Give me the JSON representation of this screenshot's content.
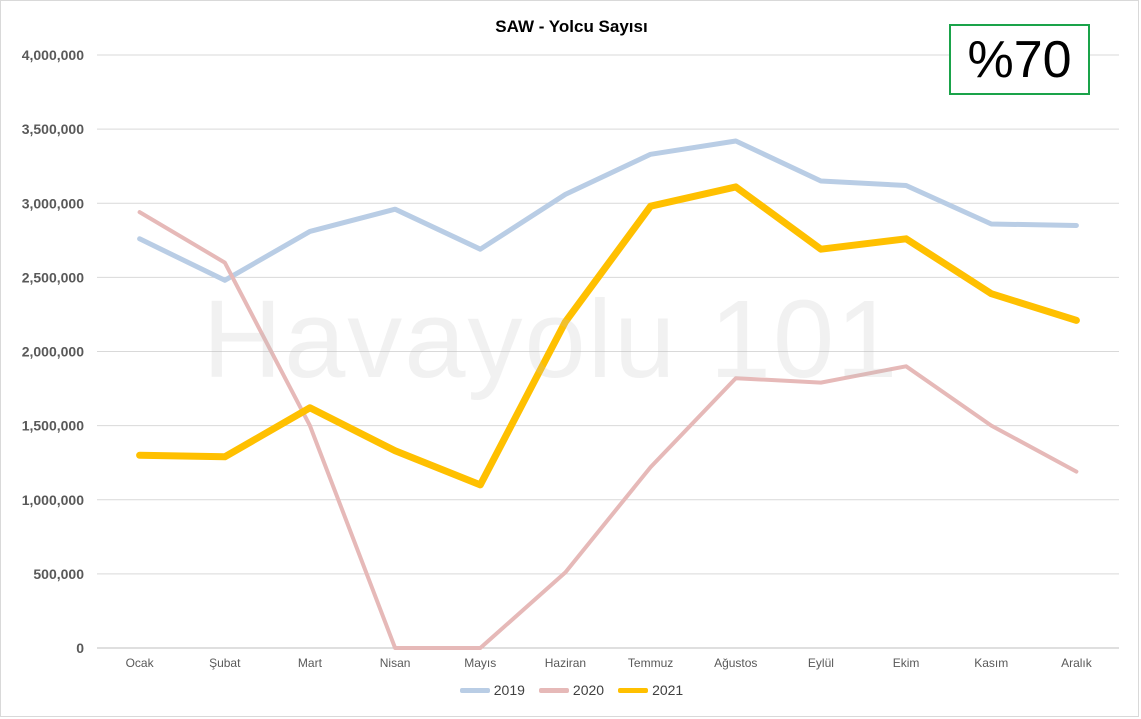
{
  "badge": {
    "text": "%70",
    "color": "#1aa34a"
  },
  "watermark": "Havayolu 101",
  "chart_data": {
    "type": "line",
    "title": "SAW - Yolcu Sayısı",
    "xlabel": "",
    "ylabel": "",
    "categories": [
      "Ocak",
      "Şubat",
      "Mart",
      "Nisan",
      "Mayıs",
      "Haziran",
      "Temmuz",
      "Ağustos",
      "Eylül",
      "Ekim",
      "Kasım",
      "Aralık"
    ],
    "ylim": [
      0,
      4000000
    ],
    "yticks": [
      0,
      500000,
      1000000,
      1500000,
      2000000,
      2500000,
      3000000,
      3500000,
      4000000
    ],
    "ytick_labels": [
      "0",
      "500,000",
      "1,000,000",
      "1,500,000",
      "2,000,000",
      "2,500,000",
      "3,000,000",
      "3,500,000",
      "4,000,000"
    ],
    "grid": true,
    "legend_position": "bottom",
    "series": [
      {
        "name": "2019",
        "color": "#b9cde5",
        "width": 5,
        "values": [
          2760000,
          2480000,
          2810000,
          2960000,
          2690000,
          3060000,
          3330000,
          3420000,
          3150000,
          3120000,
          2860000,
          2850000
        ]
      },
      {
        "name": "2020",
        "color": "#e6b9b8",
        "width": 4,
        "values": [
          2940000,
          2600000,
          1500000,
          0,
          0,
          510000,
          1220000,
          1820000,
          1790000,
          1900000,
          1500000,
          1190000
        ]
      },
      {
        "name": "2021",
        "color": "#ffc000",
        "width": 7,
        "values": [
          1300000,
          1290000,
          1620000,
          1330000,
          1100000,
          2200000,
          2980000,
          3110000,
          2690000,
          2760000,
          2390000,
          2210000
        ]
      }
    ]
  }
}
